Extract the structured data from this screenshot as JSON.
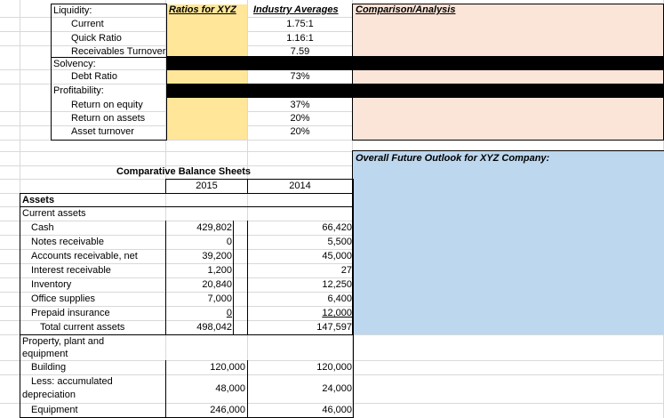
{
  "ratios": {
    "header_ratios": "Ratios for XYZ",
    "header_industry": "Industry Averages",
    "header_comparison": "Comparison/Analysis",
    "liquidity_label": "Liquidity:",
    "current_label": "Current",
    "current_avg": "1.75:1",
    "quick_label": "Quick Ratio",
    "quick_avg": "1.16:1",
    "receivables_label": "Receivables Turnover",
    "receivables_avg": "7.59",
    "solvency_label": "Solvency:",
    "debt_label": "Debt Ratio",
    "debt_avg": "73%",
    "profitability_label": "Profitability:",
    "roe_label": "Return on equity",
    "roe_avg": "37%",
    "roa_label": "Return on assets",
    "roa_avg": "20%",
    "asset_turnover_label": "Asset turnover",
    "asset_turnover_avg": "20%"
  },
  "outlook": {
    "title": "Overall Future Outlook for XYZ Company:"
  },
  "balance_sheet": {
    "title": "Comparative Balance Sheets",
    "year1": "2015",
    "year2": "2014",
    "assets_label": "Assets",
    "current_assets_label": "Current assets",
    "rows": [
      {
        "label": "Cash",
        "y2015": "429,802",
        "y2014": "66,420"
      },
      {
        "label": "Notes receivable",
        "y2015": "0",
        "y2014": "5,500"
      },
      {
        "label": "Accounts receivable, net",
        "y2015": "39,200",
        "y2014": "45,000"
      },
      {
        "label": "Interest receivable",
        "y2015": "1,200",
        "y2014": "27"
      },
      {
        "label": "Inventory",
        "y2015": "20,840",
        "y2014": "12,250"
      },
      {
        "label": "Office supplies",
        "y2015": "7,000",
        "y2014": "6,400"
      },
      {
        "label": "Prepaid insurance",
        "y2015": "0",
        "y2014": "12,000"
      },
      {
        "label": "Total current assets",
        "y2015": "498,042",
        "y2014": "147,597"
      }
    ],
    "ppe_label_1": "Property, plant and",
    "ppe_label_2": "equipment",
    "building_label": "Building",
    "building_2015": "120,000",
    "building_2014": "120,000",
    "accum_label_1": "Less:  accumulated",
    "accum_label_2": "depreciation",
    "accum_2015": "48,000",
    "accum_2014": "24,000",
    "equipment_label": "Equipment",
    "equipment_2015": "246,000",
    "equipment_2014": "46,000"
  },
  "colors": {
    "yellow": "#ffe699",
    "peach": "#fbe4d8",
    "blue": "#bdd7ee",
    "black_bar": "#000000"
  }
}
